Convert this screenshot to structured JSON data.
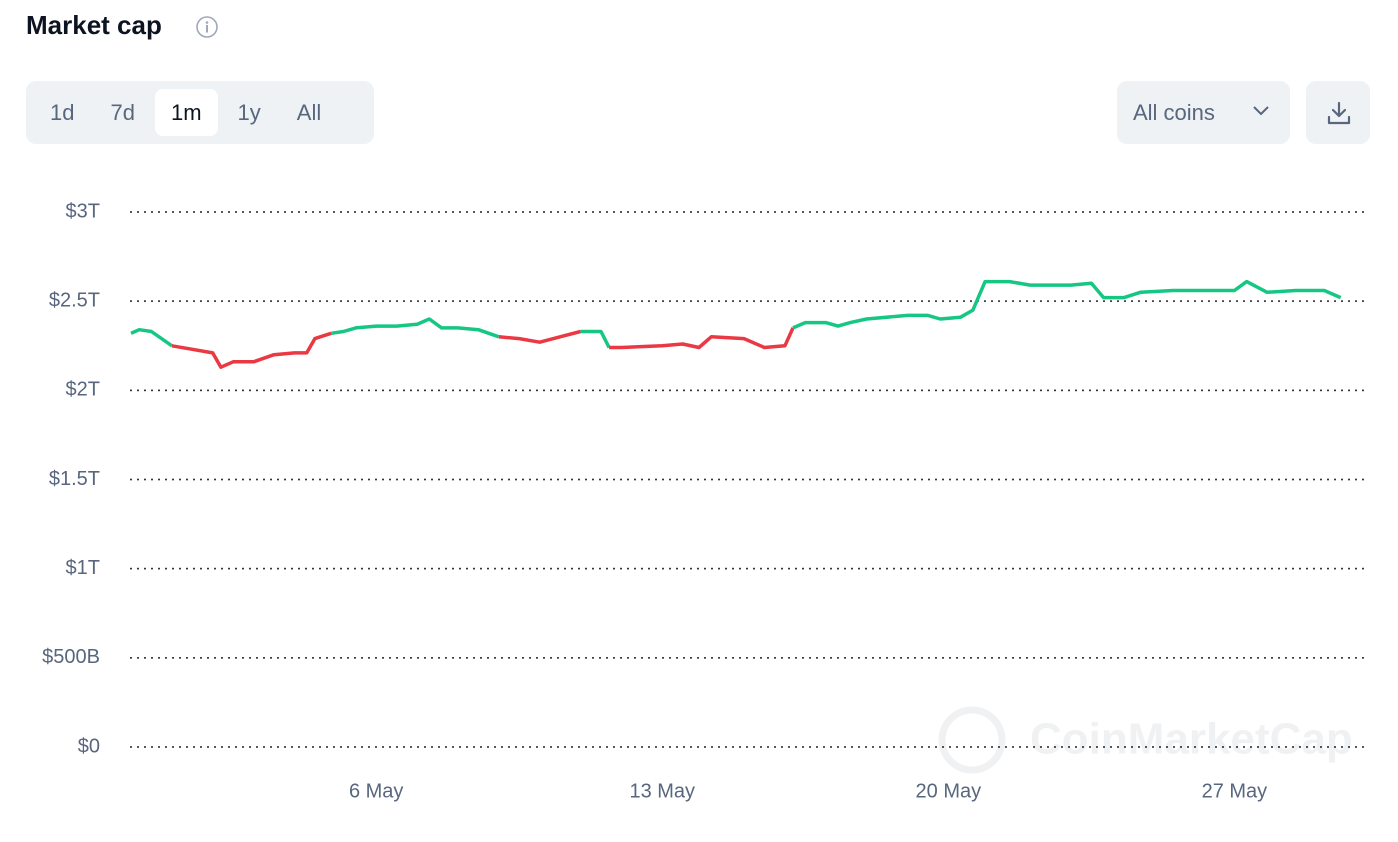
{
  "header": {
    "title": "Market cap",
    "ranges": [
      {
        "label": "1d",
        "active": false
      },
      {
        "label": "7d",
        "active": false
      },
      {
        "label": "1m",
        "active": true
      },
      {
        "label": "1y",
        "active": false
      },
      {
        "label": "All",
        "active": false
      }
    ],
    "coins": "All coins"
  },
  "watermark": "CoinMarketCap",
  "chart_data": {
    "type": "line",
    "x": [
      0,
      0.2,
      0.5,
      1.0,
      1.5,
      2.0,
      2.2,
      2.5,
      3.0,
      3.5,
      4.0,
      4.3,
      4.5,
      4.9,
      5.2,
      5.5,
      6.0,
      6.5,
      7.0,
      7.3,
      7.6,
      8.0,
      8.5,
      9.0,
      9.5,
      10.0,
      10.5,
      11.0,
      11.5,
      11.7,
      12.0,
      13.0,
      13.5,
      13.9,
      14.2,
      15.0,
      15.5,
      16.0,
      16.2,
      16.5,
      17.0,
      17.3,
      17.6,
      18.0,
      19.0,
      19.5,
      19.8,
      20.3,
      20.6,
      20.9,
      21.5,
      22.0,
      23.0,
      23.5,
      23.8,
      24.3,
      24.7,
      25.5,
      26.5,
      27.0,
      27.3,
      27.8,
      28.5,
      29.2,
      29.6
    ],
    "values": [
      2.32,
      2.34,
      2.33,
      2.25,
      2.23,
      2.21,
      2.13,
      2.16,
      2.16,
      2.2,
      2.21,
      2.21,
      2.29,
      2.32,
      2.33,
      2.35,
      2.36,
      2.36,
      2.37,
      2.4,
      2.35,
      2.35,
      2.34,
      2.3,
      2.29,
      2.27,
      2.3,
      2.33,
      2.33,
      2.24,
      2.24,
      2.25,
      2.26,
      2.24,
      2.3,
      2.29,
      2.24,
      2.25,
      2.35,
      2.38,
      2.38,
      2.36,
      2.38,
      2.4,
      2.42,
      2.42,
      2.4,
      2.41,
      2.45,
      2.61,
      2.61,
      2.59,
      2.59,
      2.6,
      2.52,
      2.52,
      2.55,
      2.56,
      2.56,
      2.56,
      2.61,
      2.55,
      2.56,
      2.56,
      2.52
    ],
    "up_color": "#16c784",
    "down_color": "#ea3943",
    "xlim": [
      0,
      30
    ],
    "xticks": [
      {
        "value": 6,
        "label": "6 May"
      },
      {
        "value": 13,
        "label": "13 May"
      },
      {
        "value": 20,
        "label": "20 May"
      },
      {
        "value": 27,
        "label": "27 May"
      }
    ],
    "ylim": [
      0,
      3
    ],
    "yticks": [
      {
        "value": 0,
        "label": "$0"
      },
      {
        "value": 0.5,
        "label": "$500B"
      },
      {
        "value": 1,
        "label": "$1T"
      },
      {
        "value": 1.5,
        "label": "$1.5T"
      },
      {
        "value": 2,
        "label": "$2T"
      },
      {
        "value": 2.5,
        "label": "$2.5T"
      },
      {
        "value": 3,
        "label": "$3T"
      }
    ],
    "grid": true
  }
}
